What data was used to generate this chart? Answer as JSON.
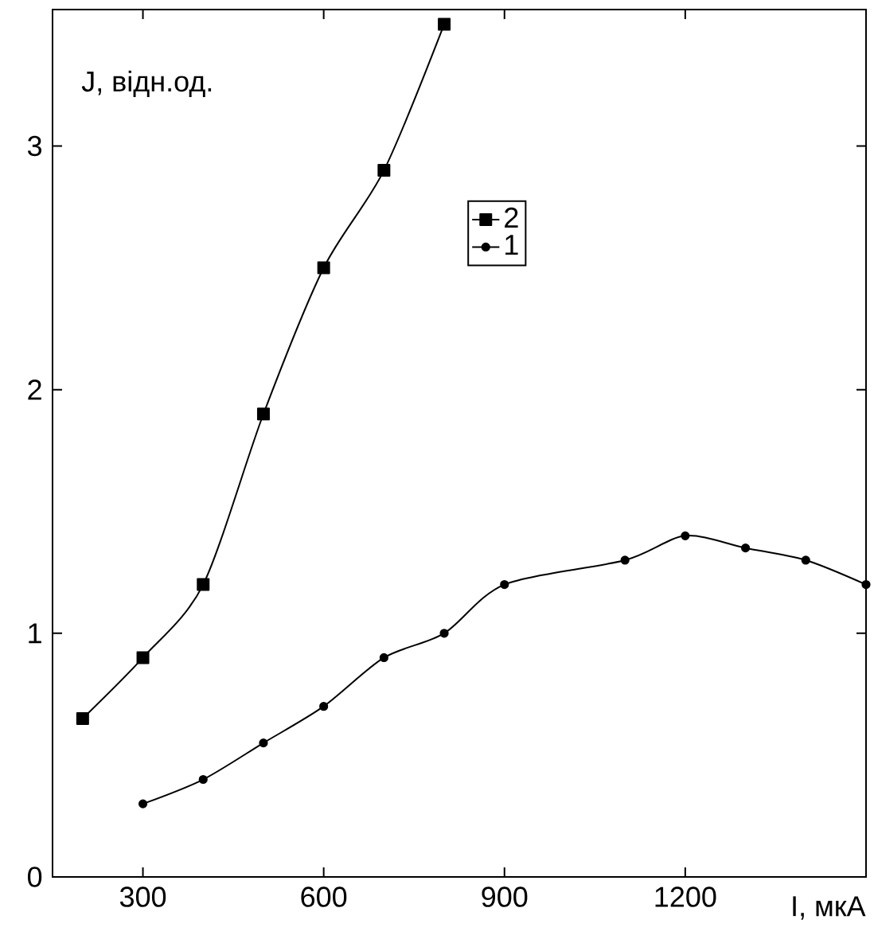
{
  "chart_data": {
    "type": "line",
    "xlabel": "I, мкА",
    "ylabel": "J, відн.од.",
    "xlim": [
      150,
      1500
    ],
    "ylim": [
      0,
      3.56
    ],
    "xticks": [
      300,
      600,
      900,
      1200
    ],
    "yticks": [
      0,
      1,
      2,
      3
    ],
    "legend": "top right",
    "grid": false,
    "line_style": "solid",
    "series": [
      {
        "name": "2",
        "color": "#000000",
        "marker": "square",
        "x": [
          200,
          300,
          400,
          500,
          600,
          700,
          800
        ],
        "values": [
          0.65,
          0.9,
          1.2,
          1.9,
          2.5,
          2.9,
          3.5
        ]
      },
      {
        "name": "1",
        "color": "#000000",
        "marker": "circle",
        "x": [
          300,
          400,
          500,
          600,
          700,
          800,
          900,
          1100,
          1200,
          1300,
          1400,
          1500
        ],
        "values": [
          0.3,
          0.4,
          0.55,
          0.7,
          0.9,
          1.0,
          1.2,
          1.3,
          1.4,
          1.35,
          1.3,
          1.2
        ]
      }
    ]
  }
}
